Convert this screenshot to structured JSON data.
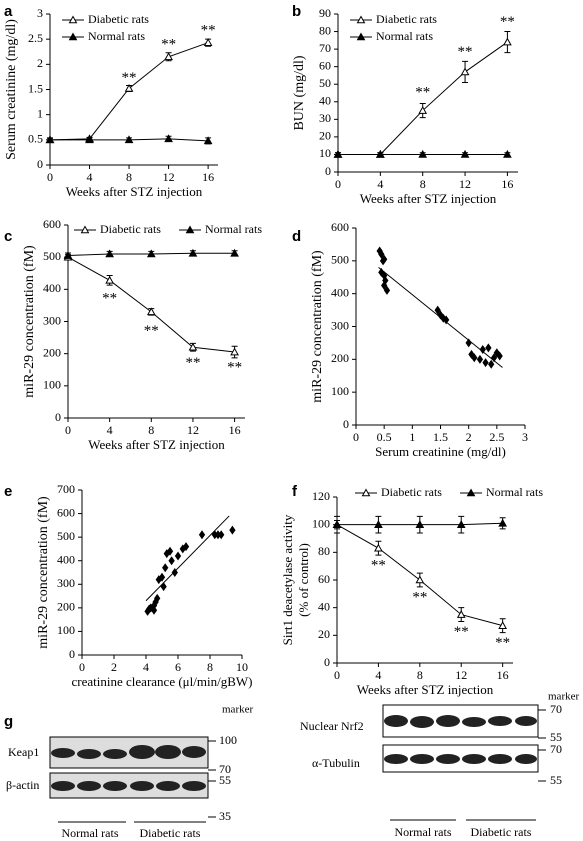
{
  "chart_data": [
    {
      "type": "line",
      "panel_label": "a",
      "ylabel": "Serum creatinine (mg/dl)",
      "xlabel": "Weeks after STZ injection",
      "x": [
        0,
        4,
        8,
        12,
        16
      ],
      "xlim": [
        0,
        17
      ],
      "xticks": [
        0,
        4,
        8,
        12,
        16
      ],
      "ylim": [
        0,
        3
      ],
      "yticks": [
        0,
        0.5,
        1,
        1.5,
        2,
        2.5,
        3
      ],
      "legend": "upper left",
      "series": [
        {
          "name": "Diabetic rats",
          "marker": "open-triangle",
          "color": "#000000",
          "values": [
            0.5,
            0.52,
            1.52,
            2.15,
            2.43
          ],
          "errors": [
            0.03,
            0.03,
            0.06,
            0.08,
            0.07
          ]
        },
        {
          "name": "Normal rats",
          "marker": "filled-triangle",
          "color": "#000000",
          "values": [
            0.5,
            0.5,
            0.5,
            0.52,
            0.48
          ],
          "errors": [
            0.04,
            0.04,
            0.04,
            0.05,
            0.06
          ]
        }
      ],
      "annotations": [
        {
          "x": 8,
          "y": 1.72,
          "text": "**"
        },
        {
          "x": 12,
          "y": 2.38,
          "text": "**"
        },
        {
          "x": 16,
          "y": 2.66,
          "text": "**"
        }
      ]
    },
    {
      "type": "line",
      "panel_label": "b",
      "ylabel": "BUN (mg/dl)",
      "xlabel": "Weeks after STZ injection",
      "x": [
        0,
        4,
        8,
        12,
        16
      ],
      "xlim": [
        0,
        17
      ],
      "xticks": [
        0,
        4,
        8,
        12,
        16
      ],
      "ylim": [
        0,
        90
      ],
      "yticks": [
        0,
        10,
        20,
        30,
        40,
        50,
        60,
        70,
        80,
        90
      ],
      "legend": "upper left",
      "series": [
        {
          "name": "Diabetic rats",
          "marker": "open-triangle",
          "color": "#000000",
          "values": [
            10,
            10,
            35,
            57,
            74
          ],
          "errors": [
            1,
            1,
            4,
            6,
            6
          ]
        },
        {
          "name": "Normal rats",
          "marker": "filled-triangle",
          "color": "#000000",
          "values": [
            10,
            10,
            10,
            10,
            10
          ],
          "errors": [
            1,
            1,
            1,
            1,
            1
          ]
        }
      ],
      "annotations": [
        {
          "x": 8,
          "y": 45,
          "text": "**"
        },
        {
          "x": 12,
          "y": 68,
          "text": "**"
        },
        {
          "x": 16,
          "y": 85,
          "text": "**"
        }
      ]
    },
    {
      "type": "line",
      "panel_label": "c",
      "ylabel": "miR-29 concentration (fM)",
      "xlabel": "Weeks after STZ injection",
      "x": [
        0,
        4,
        8,
        12,
        16
      ],
      "xlim": [
        0,
        17
      ],
      "xticks": [
        0,
        4,
        8,
        12,
        16
      ],
      "ylim": [
        0,
        600
      ],
      "yticks": [
        0,
        100,
        200,
        300,
        400,
        500,
        600
      ],
      "legend": "upper left",
      "series": [
        {
          "name": "Diabetic rats",
          "marker": "open-triangle",
          "color": "#000000",
          "values": [
            500,
            428,
            330,
            220,
            205
          ],
          "errors": [
            8,
            15,
            10,
            12,
            18
          ]
        },
        {
          "name": "Normal rats",
          "marker": "filled-triangle",
          "color": "#000000",
          "values": [
            505,
            510,
            510,
            512,
            512
          ],
          "errors": [
            8,
            8,
            8,
            8,
            8
          ]
        }
      ],
      "annotations": [
        {
          "x": 4,
          "y": 370,
          "text": "**"
        },
        {
          "x": 8,
          "y": 268,
          "text": "**"
        },
        {
          "x": 12,
          "y": 170,
          "text": "**"
        },
        {
          "x": 16,
          "y": 155,
          "text": "**"
        }
      ]
    },
    {
      "type": "scatter",
      "panel_label": "d",
      "ylabel": "miR-29 concentration (fM)",
      "xlabel": "Serum creatinine (mg/dl)",
      "xlim": [
        0,
        3
      ],
      "xticks": [
        0,
        0.5,
        1,
        1.5,
        2,
        2.5,
        3
      ],
      "ylim": [
        0,
        600
      ],
      "yticks": [
        0,
        100,
        200,
        300,
        400,
        500,
        600
      ],
      "color": "#000000",
      "x": [
        0.42,
        0.45,
        0.5,
        0.48,
        0.45,
        0.5,
        0.52,
        0.5,
        0.55,
        1.45,
        1.5,
        1.55,
        1.6,
        2.0,
        2.05,
        2.1,
        2.2,
        2.25,
        2.3,
        2.35,
        2.4,
        2.45,
        2.5,
        2.55
      ],
      "values": [
        530,
        520,
        505,
        500,
        465,
        455,
        440,
        425,
        410,
        350,
        335,
        325,
        320,
        250,
        215,
        205,
        200,
        230,
        190,
        235,
        185,
        205,
        220,
        210
      ],
      "fit": {
        "x": [
          0.4,
          2.6
        ],
        "y": [
          480,
          175
        ]
      }
    },
    {
      "type": "scatter",
      "panel_label": "e",
      "ylabel": "miR-29 concentration (fM)",
      "xlabel": "creatinine  clearance (μl/min/gBW)",
      "xlim": [
        0,
        10
      ],
      "xticks": [
        0,
        2,
        4,
        6,
        8,
        10
      ],
      "ylim": [
        0,
        700
      ],
      "yticks": [
        0,
        100,
        200,
        300,
        400,
        500,
        600,
        700
      ],
      "color": "#000000",
      "x": [
        4.1,
        4.2,
        4.3,
        4.5,
        4.6,
        4.7,
        4.5,
        4.8,
        5.0,
        5.1,
        5.2,
        5.3,
        5.5,
        5.6,
        5.8,
        6.0,
        6.3,
        6.5,
        7.5,
        8.3,
        8.5,
        8.7,
        9.4
      ],
      "values": [
        185,
        195,
        200,
        210,
        225,
        240,
        190,
        320,
        330,
        290,
        370,
        430,
        440,
        400,
        350,
        420,
        450,
        460,
        510,
        510,
        510,
        510,
        530
      ],
      "fit": {
        "x": [
          4,
          9.2
        ],
        "y": [
          230,
          590
        ]
      }
    },
    {
      "type": "line",
      "panel_label": "f",
      "ylabel": [
        "Sirt1 deacetylase activity",
        "(% of control)"
      ],
      "xlabel": "Weeks after STZ injection",
      "x": [
        0,
        4,
        8,
        12,
        16
      ],
      "xlim": [
        0,
        17
      ],
      "xticks": [
        0,
        4,
        8,
        12,
        16
      ],
      "ylim": [
        0,
        120
      ],
      "yticks": [
        0,
        20,
        40,
        60,
        80,
        100,
        120
      ],
      "legend": "upper left",
      "series": [
        {
          "name": "Diabetic rats",
          "marker": "open-triangle",
          "color": "#000000",
          "values": [
            100,
            83,
            60,
            35,
            27
          ],
          "errors": [
            3,
            5,
            5,
            5,
            5
          ]
        },
        {
          "name": "Normal rats",
          "marker": "filled-triangle",
          "color": "#000000",
          "values": [
            100,
            100,
            100,
            100,
            101
          ],
          "errors": [
            6,
            6,
            6,
            6,
            4
          ]
        }
      ],
      "annotations": [
        {
          "x": 4,
          "y": 70,
          "text": "**"
        },
        {
          "x": 8,
          "y": 47,
          "text": "**"
        },
        {
          "x": 12,
          "y": 22,
          "text": "**"
        },
        {
          "x": 16,
          "y": 14,
          "text": "**"
        }
      ]
    }
  ],
  "blots": {
    "panel_label": "g",
    "left": {
      "rows": [
        "Keap1",
        "β-actin"
      ],
      "marker_title": "marker",
      "markers": [
        "100",
        "70",
        "55",
        "35"
      ],
      "groups": [
        "Normal rats",
        "Diabetic rats"
      ]
    },
    "right": {
      "rows": [
        "Nuclear Nrf2",
        "α-Tubulin"
      ],
      "marker_title": "marker",
      "markers": [
        "70",
        "55",
        "70",
        "55"
      ],
      "groups": [
        "Normal rats",
        "Diabetic rats"
      ]
    }
  }
}
